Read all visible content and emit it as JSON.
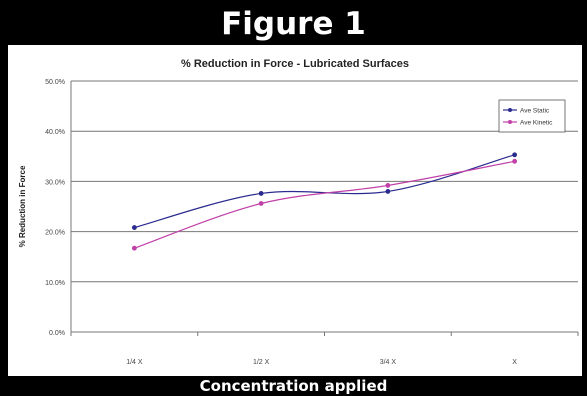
{
  "figure_label": "Figure 1",
  "bottom_caption": "Concentration applied",
  "chart_data": {
    "type": "line",
    "title": "% Reduction in Force - Lubricated Surfaces",
    "xlabel": "",
    "ylabel": "% Reduction in Force",
    "categories": [
      "1/4 X",
      "1/2 X",
      "3/4 X",
      "X"
    ],
    "y_ticks": [
      "0.0%",
      "10.0%",
      "20.0%",
      "30.0%",
      "40.0%",
      "50.0%"
    ],
    "ylim": [
      0,
      50
    ],
    "grid": true,
    "legend_position": "top-right",
    "series": [
      {
        "name": "Ave Static",
        "color": "#2b2b8f",
        "values": [
          20.8,
          27.6,
          28.0,
          35.3
        ]
      },
      {
        "name": "Ave Kinetic",
        "color": "#c040a8",
        "values": [
          16.7,
          25.6,
          29.2,
          34.0
        ]
      }
    ]
  }
}
